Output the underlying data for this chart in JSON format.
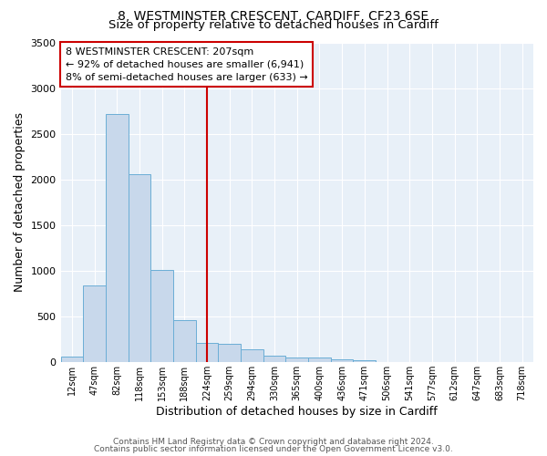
{
  "title_line1": "8, WESTMINSTER CRESCENT, CARDIFF, CF23 6SE",
  "title_line2": "Size of property relative to detached houses in Cardiff",
  "xlabel": "Distribution of detached houses by size in Cardiff",
  "ylabel": "Number of detached properties",
  "categories": [
    "12sqm",
    "47sqm",
    "82sqm",
    "118sqm",
    "153sqm",
    "188sqm",
    "224sqm",
    "259sqm",
    "294sqm",
    "330sqm",
    "365sqm",
    "400sqm",
    "436sqm",
    "471sqm",
    "506sqm",
    "541sqm",
    "577sqm",
    "612sqm",
    "647sqm",
    "683sqm",
    "718sqm"
  ],
  "values": [
    55,
    840,
    2720,
    2060,
    1010,
    455,
    205,
    195,
    140,
    65,
    50,
    50,
    28,
    20,
    0,
    0,
    0,
    0,
    0,
    0,
    0
  ],
  "bar_color": "#c8d8eb",
  "bar_edge_color": "#6baed6",
  "vline_x": 6.0,
  "vline_color": "#cc0000",
  "annotation_text": "8 WESTMINSTER CRESCENT: 207sqm\n← 92% of detached houses are smaller (6,941)\n8% of semi-detached houses are larger (633) →",
  "annotation_box_color": "#cc0000",
  "ylim": [
    0,
    3500
  ],
  "yticks": [
    0,
    500,
    1000,
    1500,
    2000,
    2500,
    3000,
    3500
  ],
  "footer_line1": "Contains HM Land Registry data © Crown copyright and database right 2024.",
  "footer_line2": "Contains public sector information licensed under the Open Government Licence v3.0.",
  "background_color": "#ffffff",
  "plot_bg_color": "#e8f0f8",
  "grid_color": "#ffffff",
  "title_fontsize": 10,
  "subtitle_fontsize": 9.5,
  "annotation_fontsize": 8,
  "footer_fontsize": 6.5,
  "xlabel_fontsize": 9,
  "ylabel_fontsize": 9
}
